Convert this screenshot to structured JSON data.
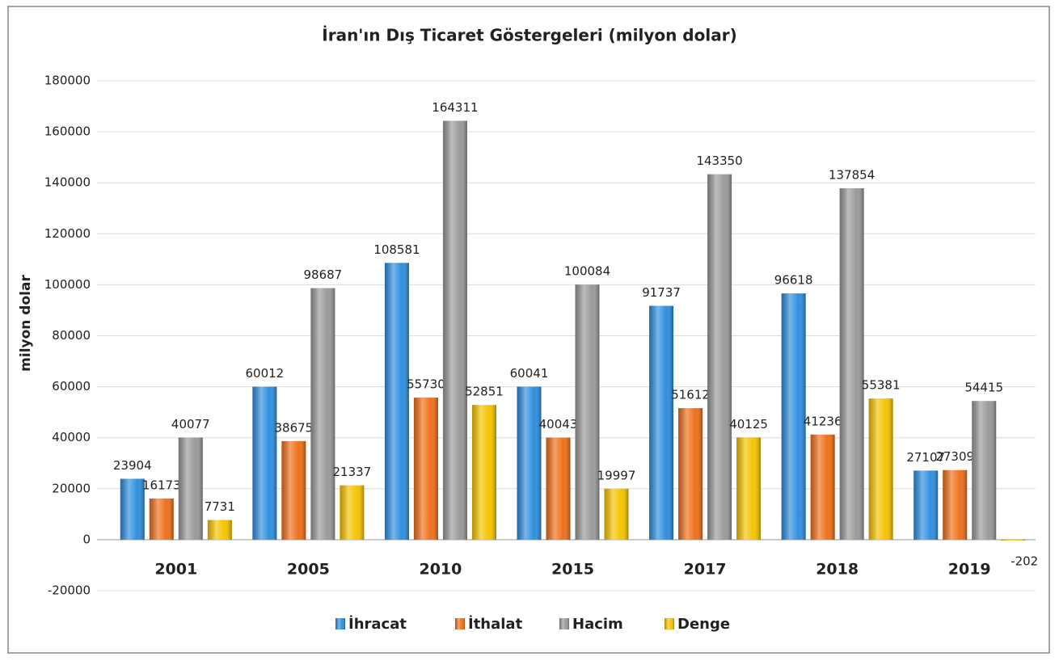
{
  "chart_data": {
    "type": "bar",
    "title": "İran'ın Dış Ticaret Göstergeleri (milyon dolar)",
    "y_label": "milyon dolar",
    "categories": [
      "2001",
      "2005",
      "2010",
      "2015",
      "2017",
      "2018",
      "2019"
    ],
    "series": [
      {
        "name": "İhracat",
        "color": "#2e8fe0",
        "values": [
          23904,
          60012,
          108581,
          60041,
          91737,
          96618,
          27107
        ]
      },
      {
        "name": "İthalat",
        "color": "#f0701a",
        "values": [
          16173,
          38675,
          55730,
          40043,
          51612,
          41236,
          27309
        ]
      },
      {
        "name": "Hacim",
        "color": "#9a9a9a",
        "values": [
          40077,
          98687,
          164311,
          100084,
          143350,
          137854,
          54415
        ]
      },
      {
        "name": "Denge",
        "color": "#f5c400",
        "values": [
          7731,
          21337,
          52851,
          19997,
          40125,
          55381,
          -202
        ]
      }
    ],
    "ylim": [
      -20000,
      180000
    ],
    "yticks": [
      -20000,
      0,
      20000,
      40000,
      60000,
      80000,
      100000,
      120000,
      140000,
      160000,
      180000
    ],
    "grid": true,
    "legend": "bottom"
  }
}
